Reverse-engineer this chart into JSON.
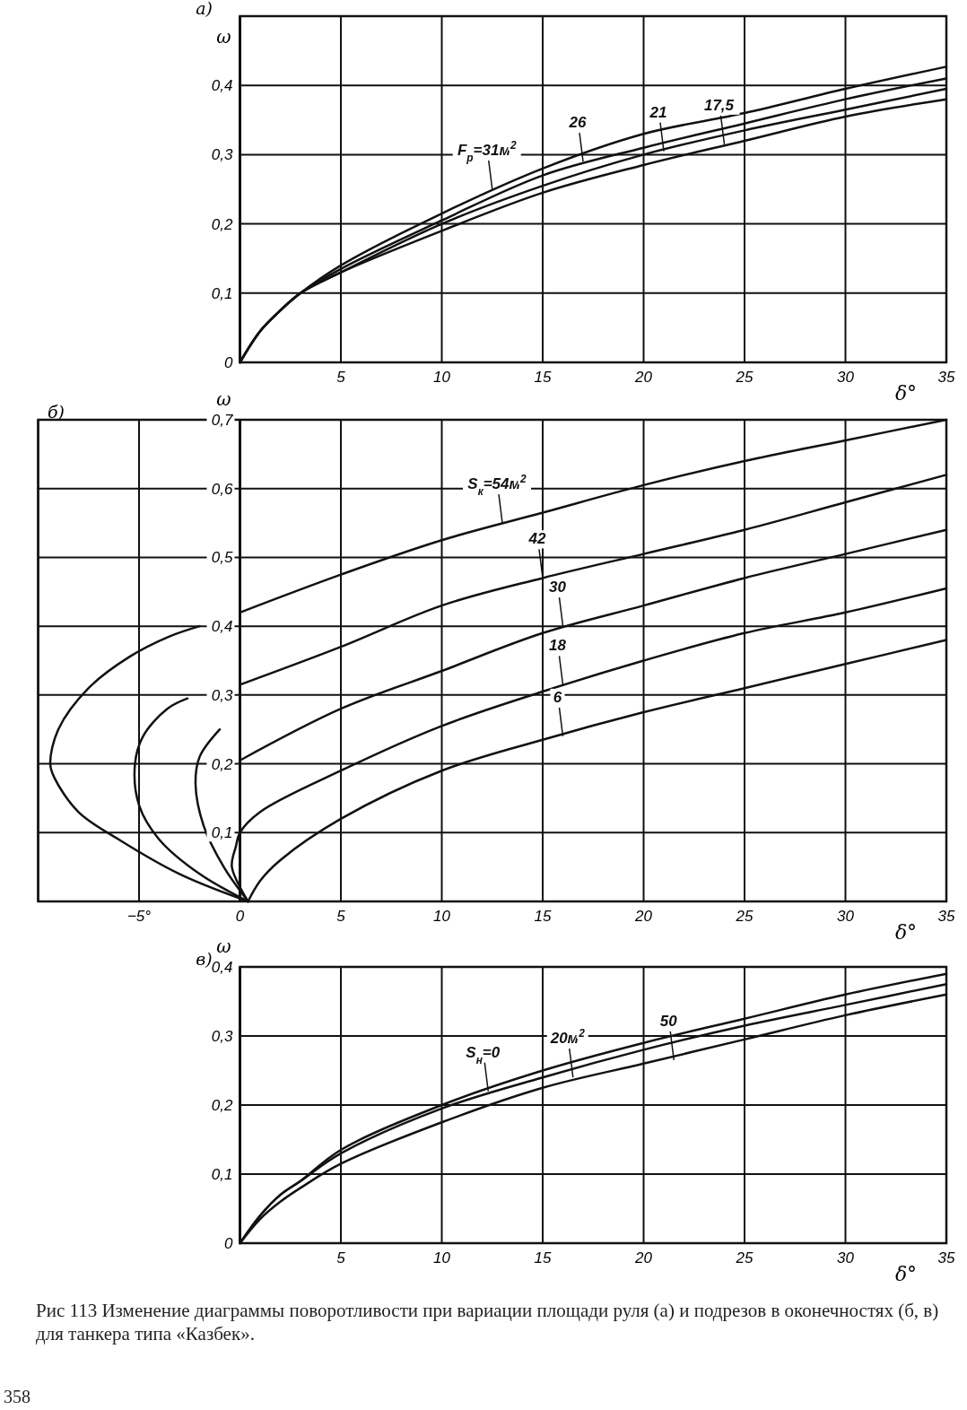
{
  "chart_data": [
    {
      "type": "line",
      "title": "а)",
      "xlabel": "δ°",
      "ylabel": "ω",
      "xlim": [
        0,
        35
      ],
      "ylim": [
        0,
        0.5
      ],
      "grid": true,
      "xticks": [
        {
          "value": 0,
          "label": null
        },
        5,
        10,
        15,
        20,
        25,
        30,
        35
      ],
      "yticks": [
        0,
        {
          "value": 0.1,
          "label": "0,1"
        },
        {
          "value": 0.2,
          "label": "0,2"
        },
        {
          "value": 0.3,
          "label": "0,3"
        },
        {
          "value": 0.4,
          "label": "0,4"
        }
      ],
      "series": [
        {
          "color": "#111111",
          "x": [
            0,
            1,
            2,
            3,
            5,
            10,
            15,
            20,
            25,
            30,
            35
          ],
          "values": [
            0,
            0.045,
            0.075,
            0.1,
            0.14,
            0.215,
            0.28,
            0.33,
            0.36,
            0.395,
            0.427
          ]
        },
        {
          "color": "#111111",
          "x": [
            0,
            1,
            2,
            3,
            5,
            10,
            15,
            20,
            25,
            30,
            35
          ],
          "values": [
            0,
            0.045,
            0.075,
            0.1,
            0.135,
            0.205,
            0.27,
            0.31,
            0.345,
            0.38,
            0.41
          ]
        },
        {
          "color": "#111111",
          "x": [
            0,
            1,
            2,
            3,
            5,
            10,
            15,
            20,
            25,
            30,
            35
          ],
          "values": [
            0,
            0.045,
            0.075,
            0.1,
            0.13,
            0.2,
            0.255,
            0.3,
            0.335,
            0.365,
            0.395
          ]
        },
        {
          "color": "#111111",
          "x": [
            0,
            1,
            2,
            3,
            5,
            10,
            15,
            20,
            25,
            30,
            35
          ],
          "values": [
            0,
            0.045,
            0.075,
            0.1,
            0.13,
            0.19,
            0.245,
            0.285,
            0.32,
            0.355,
            0.38
          ]
        }
      ],
      "annotations": [
        {
          "text": "F$_{р}$=31м$^{2}$",
          "x": 12.5,
          "y": 0.25
        },
        {
          "text": "26",
          "x": 17,
          "y": 0.29
        },
        {
          "text": "21",
          "x": 21,
          "y": 0.305
        },
        {
          "text": "17,5",
          "x": 24,
          "y": 0.315
        }
      ]
    },
    {
      "type": "line",
      "title": "б)",
      "xlabel": "δ°",
      "ylabel": "ω",
      "xlim": [
        -10,
        35
      ],
      "ylim": [
        0,
        0.7
      ],
      "grid": true,
      "xticks": [
        {
          "value": -10,
          "label": null
        },
        {
          "value": -5,
          "label": "−5°"
        },
        0,
        5,
        10,
        15,
        20,
        25,
        30,
        35
      ],
      "yticks": [
        {
          "value": 0,
          "label": null
        },
        {
          "value": 0.1,
          "label": "0,1"
        },
        {
          "value": 0.2,
          "label": "0,2"
        },
        {
          "value": 0.3,
          "label": "0,3"
        },
        {
          "value": 0.4,
          "label": "0,4"
        },
        {
          "value": 0.5,
          "label": "0,5"
        },
        {
          "value": 0.6,
          "label": "0,6"
        },
        {
          "value": 0.7,
          "label": "0,7"
        }
      ],
      "series": [
        {
          "color": "#111111",
          "x": [
            0.4,
            -3,
            -6,
            -8,
            -9.2,
            -9.4,
            -9,
            -7.5,
            -5.5,
            -3.5,
            -2,
            -1,
            0,
            5,
            10,
            15,
            20,
            25,
            30,
            35
          ],
          "values": [
            0,
            0.04,
            0.09,
            0.13,
            0.18,
            0.2,
            0.25,
            0.31,
            0.355,
            0.385,
            0.4,
            null,
            0.42,
            0.475,
            0.525,
            0.565,
            0.605,
            0.64,
            0.67,
            0.7
          ]
        },
        {
          "color": "#111111",
          "x": [
            0.4,
            -2,
            -4,
            -5,
            -5.2,
            -4.8,
            -3.6,
            -2.6,
            -1,
            0,
            5,
            10,
            15,
            20,
            25,
            30,
            35
          ],
          "values": [
            0,
            0.04,
            0.09,
            0.14,
            0.2,
            0.24,
            0.28,
            0.295,
            null,
            0.315,
            0.37,
            0.43,
            0.47,
            0.505,
            0.54,
            0.58,
            0.62
          ]
        },
        {
          "color": "#111111",
          "x": [
            0.4,
            -0.8,
            -1.8,
            -2.2,
            -2,
            -1,
            -0.5,
            0,
            5,
            10,
            15,
            20,
            25,
            30,
            35
          ],
          "values": [
            0,
            0.05,
            0.11,
            0.17,
            0.21,
            0.25,
            null,
            0.205,
            0.28,
            0.335,
            0.39,
            0.43,
            0.47,
            0.505,
            0.54
          ]
        },
        {
          "color": "#111111",
          "x": [
            0.4,
            -0.4,
            -0.2,
            0,
            1,
            5,
            10,
            15,
            20,
            25,
            30,
            35
          ],
          "values": [
            0,
            0.05,
            0.08,
            0.1,
            0.13,
            0.19,
            0.255,
            0.305,
            0.35,
            0.39,
            0.42,
            0.455
          ]
        },
        {
          "color": "#111111",
          "x": [
            0.4,
            1,
            2,
            5,
            10,
            15,
            20,
            25,
            30,
            35
          ],
          "values": [
            0,
            0.03,
            0.06,
            0.12,
            0.19,
            0.235,
            0.275,
            0.31,
            0.345,
            0.38
          ]
        }
      ],
      "annotations": [
        {
          "text": "S$_{к}$=54м$^{2}$",
          "x": 13,
          "y": 0.55
        },
        {
          "text": "42",
          "x": 15,
          "y": 0.47
        },
        {
          "text": "30",
          "x": 16,
          "y": 0.4
        },
        {
          "text": "18",
          "x": 16,
          "y": 0.315
        },
        {
          "text": "6",
          "x": 16,
          "y": 0.24
        }
      ]
    },
    {
      "type": "line",
      "title": "в)",
      "xlabel": "δ°",
      "ylabel": "ω",
      "xlim": [
        0,
        35
      ],
      "ylim": [
        0,
        0.4
      ],
      "grid": true,
      "xticks": [
        {
          "value": 0,
          "label": null
        },
        5,
        10,
        15,
        20,
        25,
        30,
        35
      ],
      "yticks": [
        0,
        {
          "value": 0.1,
          "label": "0,1"
        },
        {
          "value": 0.2,
          "label": "0,2"
        },
        {
          "value": 0.3,
          "label": "0,3"
        },
        {
          "value": 0.4,
          "label": "0,4"
        }
      ],
      "series": [
        {
          "color": "#111111",
          "x": [
            0,
            1,
            2,
            3,
            5,
            10,
            15,
            20,
            25,
            30,
            35
          ],
          "values": [
            0,
            0.04,
            0.07,
            0.09,
            0.135,
            0.2,
            0.25,
            0.29,
            0.325,
            0.36,
            0.39
          ]
        },
        {
          "color": "#111111",
          "x": [
            0,
            1,
            2,
            3,
            5,
            10,
            15,
            20,
            25,
            30,
            35
          ],
          "values": [
            0,
            0.04,
            0.07,
            0.09,
            0.13,
            0.195,
            0.24,
            0.28,
            0.315,
            0.345,
            0.375
          ]
        },
        {
          "color": "#111111",
          "x": [
            0,
            1,
            2,
            3,
            5,
            10,
            15,
            20,
            25,
            30,
            35
          ],
          "values": [
            0,
            0.035,
            0.06,
            0.08,
            0.115,
            0.175,
            0.225,
            0.26,
            0.295,
            0.33,
            0.36
          ]
        }
      ],
      "annotations": [
        {
          "text": "S$_{н}$=0",
          "x": 12.3,
          "y": 0.22
        },
        {
          "text": "20м$^{2}$",
          "x": 16.5,
          "y": 0.24
        },
        {
          "text": "50",
          "x": 21.5,
          "y": 0.265
        },
        "Рис 113 Изменение диаграммы поворотливости при вариации площади руля (а) и подрезов в оконечностях (б, в) для танкера типа «Казбек».",
        "358"
      ]
    }
  ]
}
